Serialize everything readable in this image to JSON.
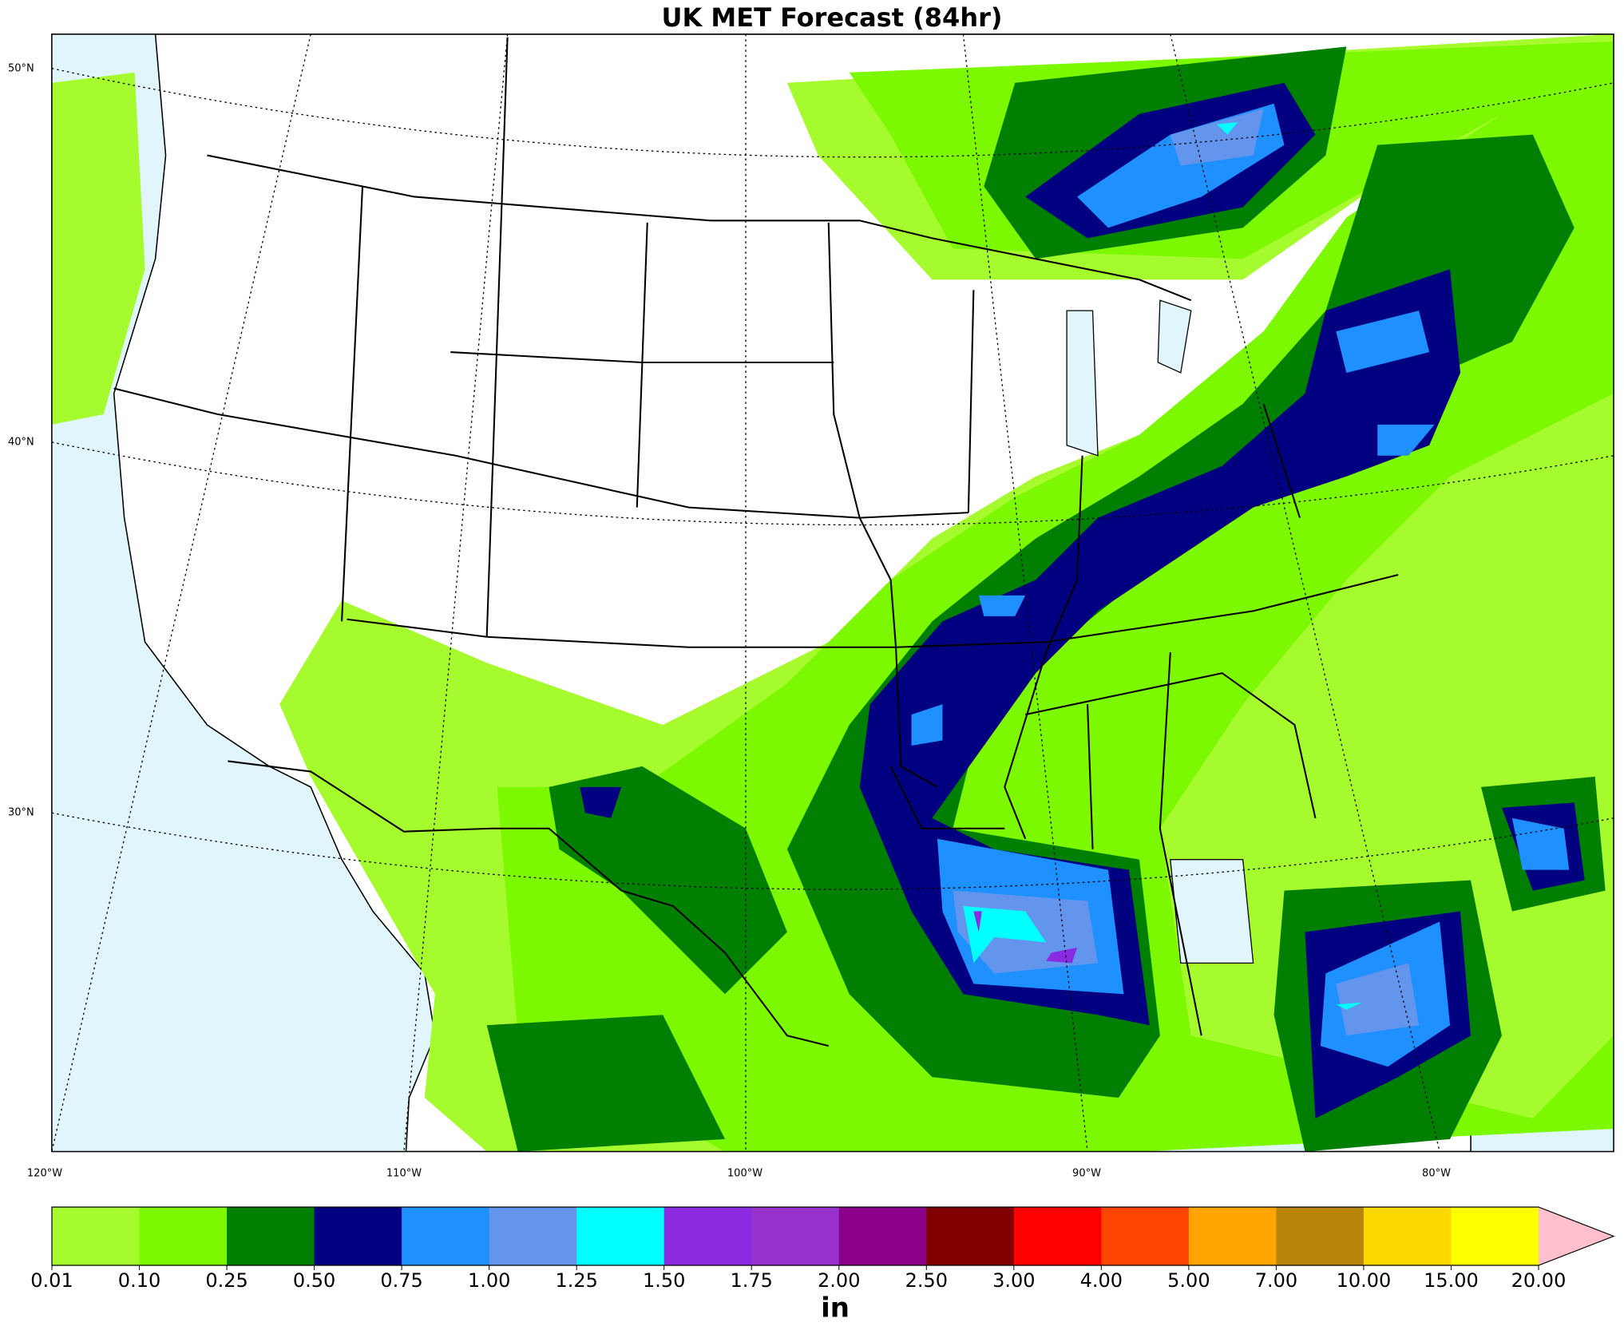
{
  "title": "UK MET Forecast (84hr)",
  "map": {
    "lat_labels": [
      "50°N",
      "40°N",
      "30°N"
    ],
    "lon_labels": [
      "120°W",
      "110°W",
      "100°W",
      "90°W",
      "80°W"
    ]
  },
  "colorbar": {
    "levels": [
      {
        "value": 0.01,
        "label": "0.01"
      },
      {
        "value": 0.1,
        "label": "0.10"
      },
      {
        "value": 0.25,
        "label": "0.25"
      },
      {
        "value": 0.5,
        "label": "0.50"
      },
      {
        "value": 0.75,
        "label": "0.75"
      },
      {
        "value": 1,
        "label": "1.00"
      },
      {
        "value": 1.25,
        "label": "1.25"
      },
      {
        "value": 1.5,
        "label": "1.50"
      },
      {
        "value": 1.75,
        "label": "1.75"
      },
      {
        "value": 2,
        "label": "2.00"
      },
      {
        "value": 2.5,
        "label": "2.50"
      },
      {
        "value": 3,
        "label": "3.00"
      },
      {
        "value": 4,
        "label": "4.00"
      },
      {
        "value": 5,
        "label": "5.00"
      },
      {
        "value": 7,
        "label": "7.00"
      },
      {
        "value": 10,
        "label": "10.00"
      },
      {
        "value": 15,
        "label": "15.00"
      },
      {
        "value": 20,
        "label": "20.00"
      }
    ],
    "colors": [
      "#a6fb2e",
      "#7cf800",
      "#007f00",
      "#000080",
      "#1e90ff",
      "#6495ed",
      "#00ffff",
      "#8a2be2",
      "#9932cc",
      "#8b008b",
      "#800000",
      "#ff0000",
      "#ff4500",
      "#ffa500",
      "#b8860b",
      "#ffd700",
      "#ffff00"
    ],
    "extend_color": "#ffc0cb",
    "label": "in"
  }
}
